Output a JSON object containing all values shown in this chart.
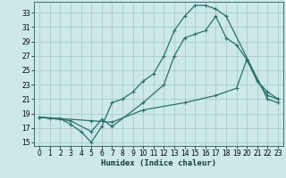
{
  "title": "",
  "xlabel": "Humidex (Indice chaleur)",
  "bg_color": "#cce8e8",
  "grid_color": "#aacccc",
  "line_color": "#2a7068",
  "line1_x": [
    0,
    1,
    2,
    3,
    4,
    5,
    6,
    7,
    8,
    9,
    10,
    11,
    12,
    13,
    14,
    15,
    16,
    17,
    18,
    22,
    23
  ],
  "line1_y": [
    18.5,
    18.3,
    18.3,
    17.5,
    16.5,
    15.0,
    17.2,
    20.5,
    21.0,
    22.0,
    23.5,
    24.5,
    27.0,
    30.5,
    32.5,
    34.0,
    34.0,
    33.5,
    32.5,
    21.0,
    20.5
  ],
  "line2_x": [
    0,
    3,
    5,
    6,
    7,
    10,
    12,
    13,
    14,
    15,
    16,
    17,
    18,
    19,
    20,
    21,
    22,
    23
  ],
  "line2_y": [
    18.5,
    18.0,
    16.5,
    18.2,
    17.2,
    20.5,
    23.0,
    27.0,
    29.5,
    30.0,
    30.5,
    32.5,
    29.5,
    28.5,
    26.5,
    23.5,
    22.0,
    21.0
  ],
  "line3_x": [
    0,
    5,
    7,
    10,
    14,
    17,
    19,
    20,
    21,
    22,
    23
  ],
  "line3_y": [
    18.5,
    18.0,
    17.8,
    19.5,
    20.5,
    21.5,
    22.5,
    26.5,
    23.5,
    21.5,
    21.0
  ],
  "xlim": [
    -0.5,
    23.5
  ],
  "ylim": [
    14.5,
    34.5
  ],
  "xticks": [
    0,
    1,
    2,
    3,
    4,
    5,
    6,
    7,
    8,
    9,
    10,
    11,
    12,
    13,
    14,
    15,
    16,
    17,
    18,
    19,
    20,
    21,
    22,
    23
  ],
  "yticks": [
    15,
    17,
    19,
    21,
    23,
    25,
    27,
    29,
    31,
    33
  ],
  "label_fontsize": 6.5,
  "tick_fontsize": 5.5
}
